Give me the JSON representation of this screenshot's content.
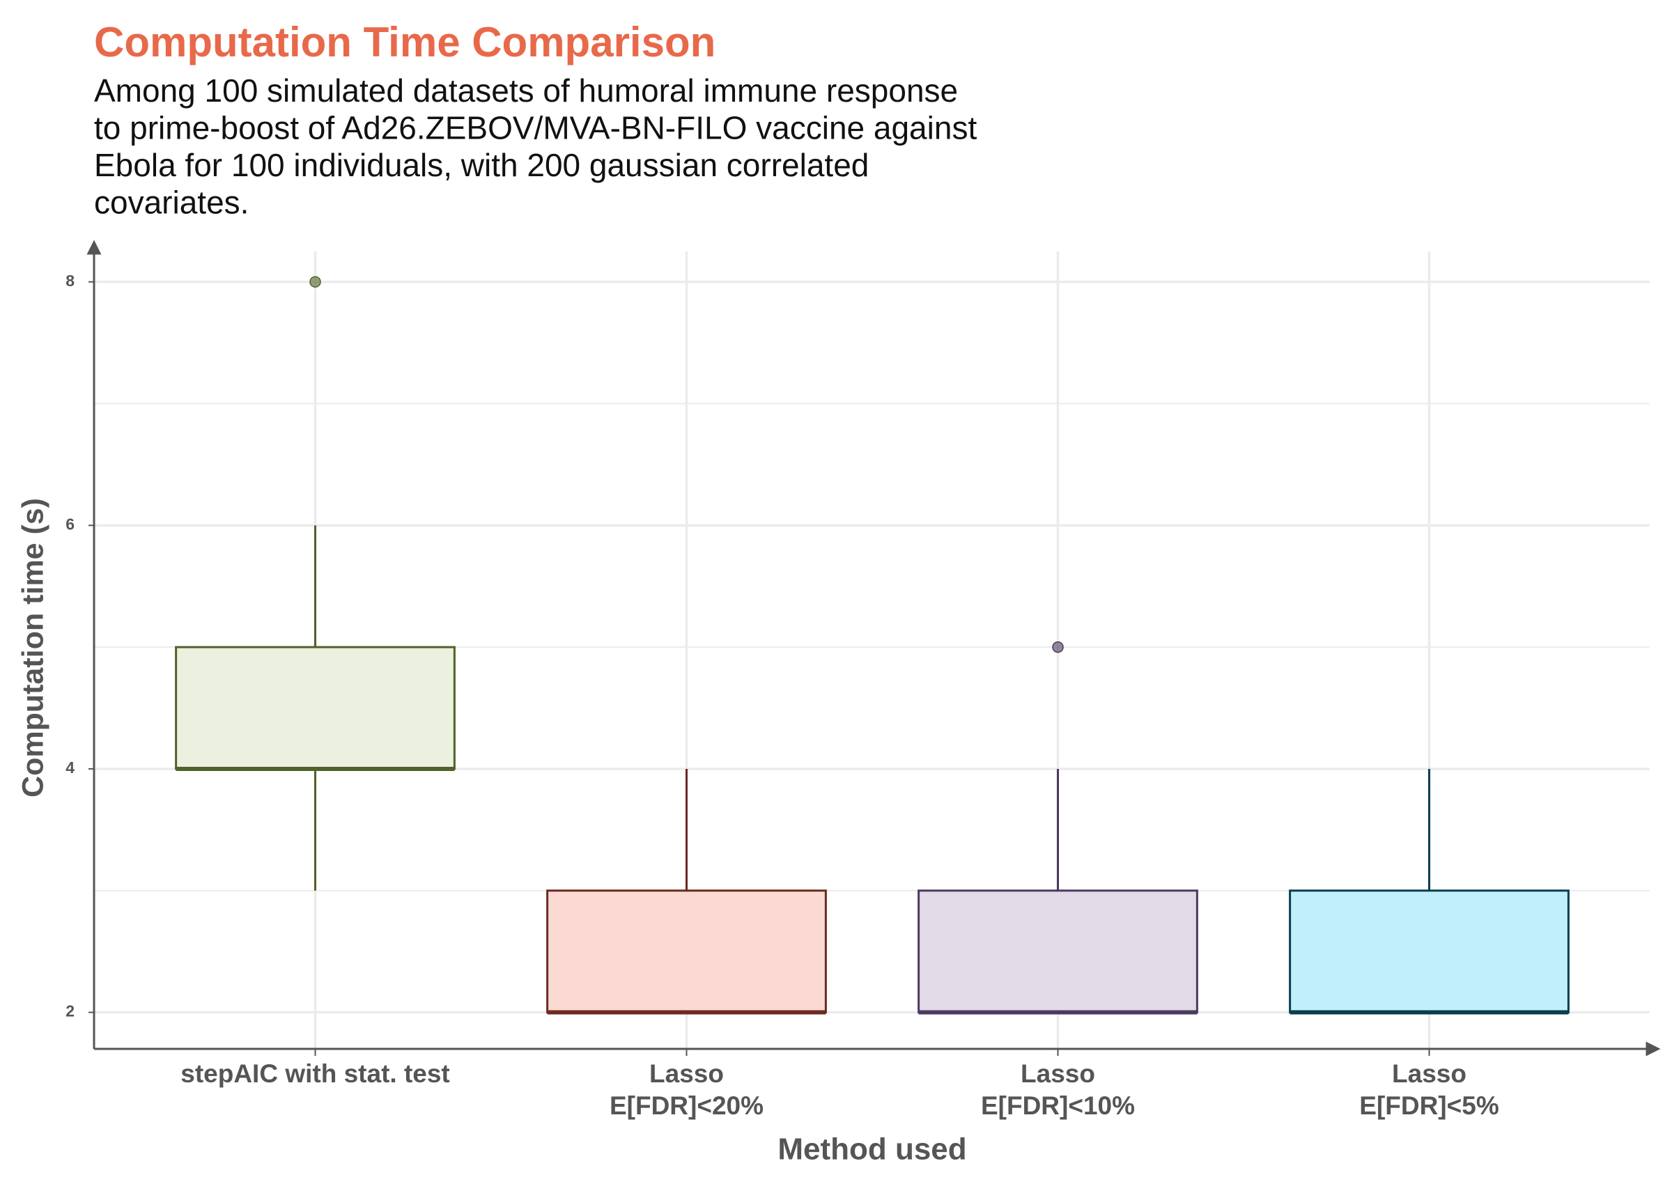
{
  "chart_data": {
    "type": "boxplot",
    "title": "Computation Time Comparison",
    "subtitle": [
      "Among 100 simulated datasets of humoral immune response",
      "to prime-boost of Ad26.ZEBOV/MVA-BN-FILO vaccine against",
      "Ebola for 100 individuals, with 200 gaussian correlated",
      "covariates."
    ],
    "x_label": "Method used",
    "y_label": "Computation time (s)",
    "categories": [
      [
        "stepAIC with stat. test"
      ],
      [
        "Lasso",
        "E[FDR]<20%"
      ],
      [
        "Lasso",
        "E[FDR]<10%"
      ],
      [
        "Lasso",
        "E[FDR]<5%"
      ]
    ],
    "boxes": [
      {
        "color": "#4f6228",
        "fill": "#ecf0de",
        "low": 3,
        "q1": 4,
        "median": 4,
        "q3": 5,
        "high": 6,
        "outliers": [
          8
        ]
      },
      {
        "color": "#6b2a22",
        "fill": "#fadad2",
        "low": 2,
        "q1": 2,
        "median": 2,
        "q3": 3,
        "high": 4,
        "outliers": []
      },
      {
        "color": "#4b3a5e",
        "fill": "#e2dae6",
        "low": 2,
        "q1": 2,
        "median": 2,
        "q3": 3,
        "high": 4,
        "outliers": [
          5
        ]
      },
      {
        "color": "#0b3d4f",
        "fill": "#c2effc",
        "low": 2,
        "q1": 2,
        "median": 2,
        "q3": 3,
        "high": 4,
        "outliers": []
      }
    ],
    "ylim": [
      1.7,
      8.25
    ],
    "yticks": [
      2,
      4,
      6,
      8
    ],
    "grid": true
  }
}
